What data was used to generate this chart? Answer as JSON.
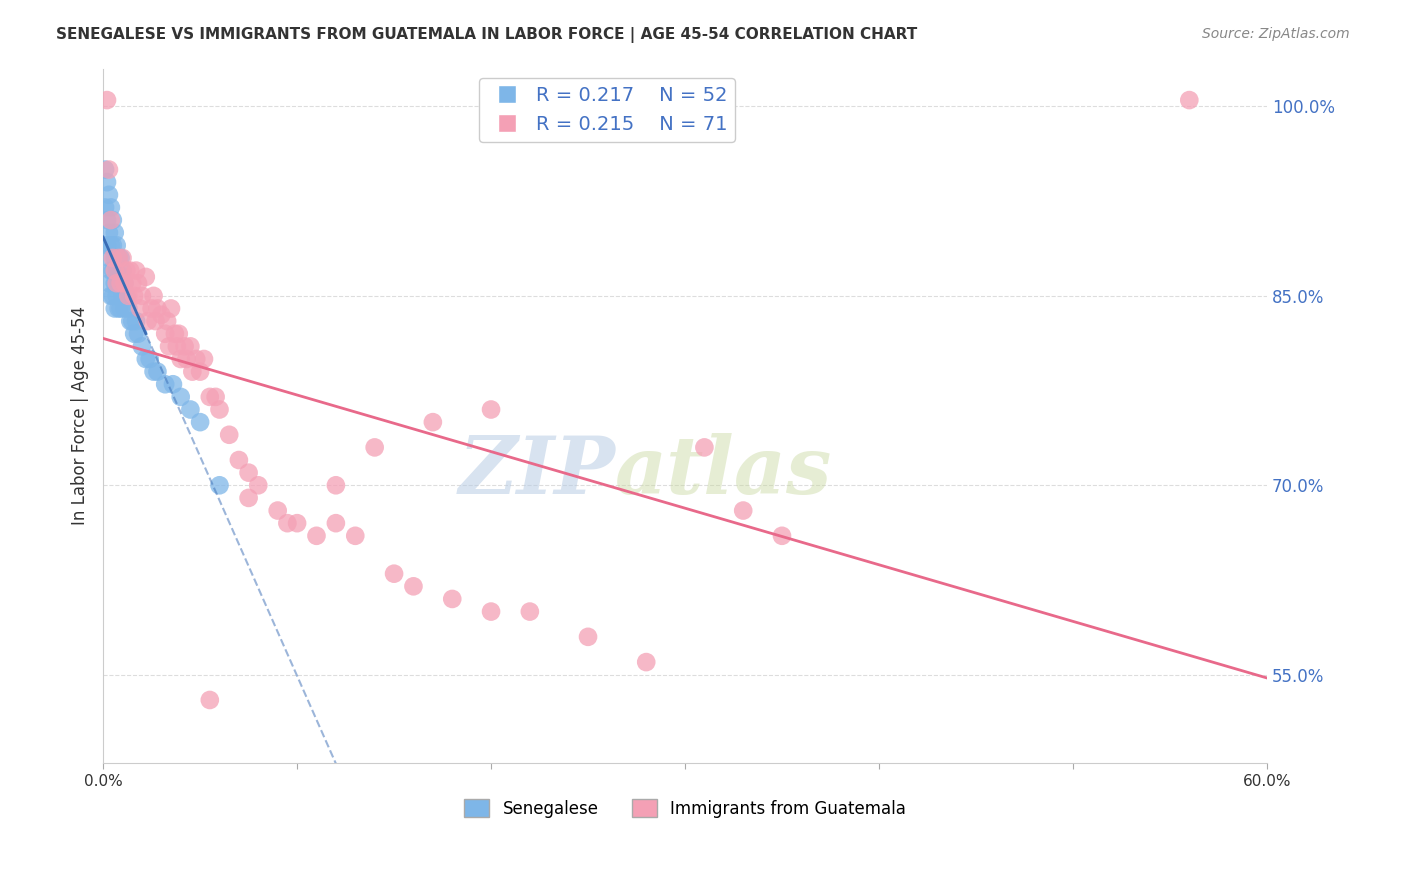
{
  "title": "SENEGALESE VS IMMIGRANTS FROM GUATEMALA IN LABOR FORCE | AGE 45-54 CORRELATION CHART",
  "source": "Source: ZipAtlas.com",
  "ylabel": "In Labor Force | Age 45-54",
  "watermark_zip": "ZIP",
  "watermark_atlas": "atlas",
  "xlim": [
    0.0,
    0.6
  ],
  "ylim": [
    0.48,
    1.03
  ],
  "yticks_right": [
    0.55,
    0.7,
    0.85,
    1.0
  ],
  "ytick_right_labels": [
    "55.0%",
    "70.0%",
    "85.0%",
    "100.0%"
  ],
  "legend_blue_r": "R = 0.217",
  "legend_blue_n": "N = 52",
  "legend_pink_r": "R = 0.215",
  "legend_pink_n": "N = 71",
  "legend_label_blue": "Senegalese",
  "legend_label_pink": "Immigrants from Guatemala",
  "blue_color": "#7EB6E8",
  "pink_color": "#F4A0B5",
  "blue_line_color": "#3A6DB5",
  "pink_line_color": "#E8698A",
  "blue_r": 0.217,
  "blue_n": 52,
  "pink_r": 0.215,
  "pink_n": 71,
  "senegalese_x": [
    0.001,
    0.001,
    0.002,
    0.002,
    0.002,
    0.003,
    0.003,
    0.003,
    0.003,
    0.004,
    0.004,
    0.004,
    0.004,
    0.005,
    0.005,
    0.005,
    0.005,
    0.006,
    0.006,
    0.006,
    0.006,
    0.007,
    0.007,
    0.007,
    0.008,
    0.008,
    0.008,
    0.009,
    0.009,
    0.009,
    0.01,
    0.01,
    0.011,
    0.011,
    0.012,
    0.013,
    0.014,
    0.015,
    0.016,
    0.017,
    0.018,
    0.02,
    0.022,
    0.024,
    0.026,
    0.028,
    0.032,
    0.036,
    0.04,
    0.045,
    0.05,
    0.06
  ],
  "senegalese_y": [
    0.95,
    0.92,
    0.94,
    0.91,
    0.89,
    0.93,
    0.9,
    0.88,
    0.86,
    0.92,
    0.89,
    0.87,
    0.85,
    0.91,
    0.89,
    0.87,
    0.85,
    0.9,
    0.88,
    0.86,
    0.84,
    0.89,
    0.87,
    0.85,
    0.88,
    0.86,
    0.84,
    0.88,
    0.86,
    0.84,
    0.87,
    0.85,
    0.86,
    0.84,
    0.85,
    0.84,
    0.83,
    0.83,
    0.82,
    0.83,
    0.82,
    0.81,
    0.8,
    0.8,
    0.79,
    0.79,
    0.78,
    0.78,
    0.77,
    0.76,
    0.75,
    0.7
  ],
  "guatemala_x": [
    0.002,
    0.003,
    0.004,
    0.005,
    0.006,
    0.007,
    0.008,
    0.009,
    0.01,
    0.011,
    0.012,
    0.013,
    0.014,
    0.015,
    0.016,
    0.017,
    0.018,
    0.019,
    0.02,
    0.022,
    0.023,
    0.025,
    0.026,
    0.027,
    0.028,
    0.03,
    0.032,
    0.033,
    0.034,
    0.035,
    0.037,
    0.038,
    0.039,
    0.04,
    0.042,
    0.043,
    0.045,
    0.046,
    0.048,
    0.05,
    0.052,
    0.055,
    0.058,
    0.06,
    0.065,
    0.07,
    0.075,
    0.08,
    0.09,
    0.1,
    0.11,
    0.12,
    0.13,
    0.15,
    0.16,
    0.18,
    0.2,
    0.22,
    0.25,
    0.28,
    0.31,
    0.33,
    0.35,
    0.2,
    0.17,
    0.14,
    0.12,
    0.095,
    0.075,
    0.055,
    0.56
  ],
  "guatemala_y": [
    1.005,
    0.95,
    0.91,
    0.88,
    0.87,
    0.86,
    0.88,
    0.86,
    0.88,
    0.86,
    0.87,
    0.85,
    0.87,
    0.86,
    0.85,
    0.87,
    0.86,
    0.84,
    0.85,
    0.865,
    0.83,
    0.84,
    0.85,
    0.83,
    0.84,
    0.835,
    0.82,
    0.83,
    0.81,
    0.84,
    0.82,
    0.81,
    0.82,
    0.8,
    0.81,
    0.8,
    0.81,
    0.79,
    0.8,
    0.79,
    0.8,
    0.77,
    0.77,
    0.76,
    0.74,
    0.72,
    0.71,
    0.7,
    0.68,
    0.67,
    0.66,
    0.67,
    0.66,
    0.63,
    0.62,
    0.61,
    0.6,
    0.6,
    0.58,
    0.56,
    0.73,
    0.68,
    0.66,
    0.76,
    0.75,
    0.73,
    0.7,
    0.67,
    0.69,
    0.53,
    1.005
  ],
  "grid_color": "#DDDDDD",
  "background_color": "#FFFFFF",
  "title_color": "#333333",
  "axis_label_color": "#333333",
  "right_tick_color": "#4472C4",
  "source_color": "#888888"
}
